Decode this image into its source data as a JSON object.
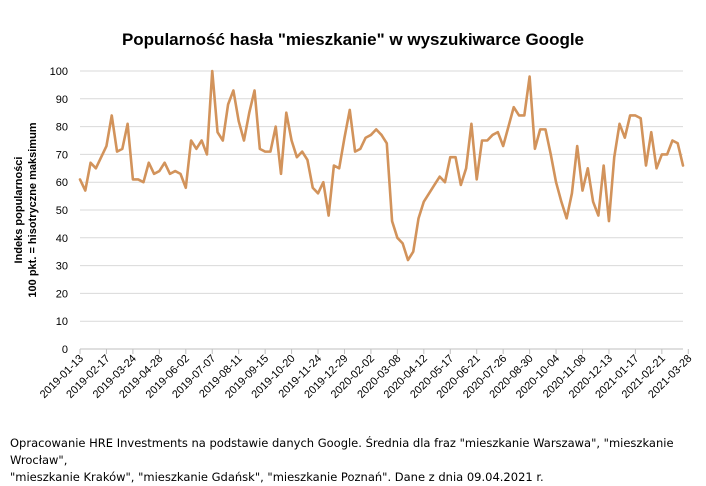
{
  "chart_data": {
    "type": "line",
    "title": "Popularność hasła \"mieszkanie\" w wyszukiwarce Google",
    "ylabel_line1": "Indeks popularności",
    "ylabel_line2": "100 pkt. = hisotryczne maksimum",
    "ylim": [
      0,
      100
    ],
    "yticks": [
      0,
      10,
      20,
      30,
      40,
      50,
      60,
      70,
      80,
      90,
      100
    ],
    "grid": true,
    "legend": "none",
    "line_color": "#D2935B",
    "xtick_labels": [
      "2019-01-13",
      "2019-02-17",
      "2019-03-24",
      "2019-04-28",
      "2019-06-02",
      "2019-07-07",
      "2019-08-11",
      "2019-09-15",
      "2019-10-20",
      "2019-11-24",
      "2019-12-29",
      "2020-02-02",
      "2020-03-08",
      "2020-04-12",
      "2020-05-17",
      "2020-06-21",
      "2020-07-26",
      "2020-08-30",
      "2020-10-04",
      "2020-11-08",
      "2020-12-13",
      "2021-01-17",
      "2021-02-21",
      "2021-03-28"
    ],
    "tick_interval_weeks": 5,
    "start_date": "2019-01-13",
    "end_date": "2021-03-28",
    "values": [
      61,
      57,
      67,
      65,
      69,
      73,
      84,
      71,
      72,
      81,
      61,
      61,
      60,
      67,
      63,
      64,
      67,
      63,
      64,
      63,
      58,
      75,
      72,
      75,
      70,
      100,
      78,
      75,
      88,
      93,
      82,
      75,
      85,
      93,
      72,
      71,
      71,
      80,
      63,
      85,
      75,
      69,
      71,
      68,
      58,
      56,
      60,
      48,
      66,
      65,
      76,
      86,
      71,
      72,
      76,
      77,
      79,
      77,
      74,
      46,
      40,
      38,
      32,
      35,
      47,
      53,
      56,
      59,
      62,
      60,
      69,
      69,
      59,
      65,
      81,
      61,
      75,
      75,
      77,
      78,
      73,
      80,
      87,
      84,
      84,
      98,
      72,
      79,
      79,
      70,
      60,
      53,
      47,
      56,
      73,
      57,
      65,
      53,
      48,
      66,
      46,
      69,
      81,
      76,
      84,
      84,
      83,
      66,
      78,
      65,
      70,
      70,
      75,
      74,
      66
    ]
  },
  "footnote": {
    "line1": "Opracowanie HRE Investments  na podstawie danych Google. Średnia dla fraz \"mieszkanie Warszawa\", \"mieszkanie Wrocław\",",
    "line2": "\"mieszkanie Kraków\", \"mieszkanie Gdańsk\", \"mieszkanie Poznań\". Dane z dnia 09.04.2021 r."
  }
}
